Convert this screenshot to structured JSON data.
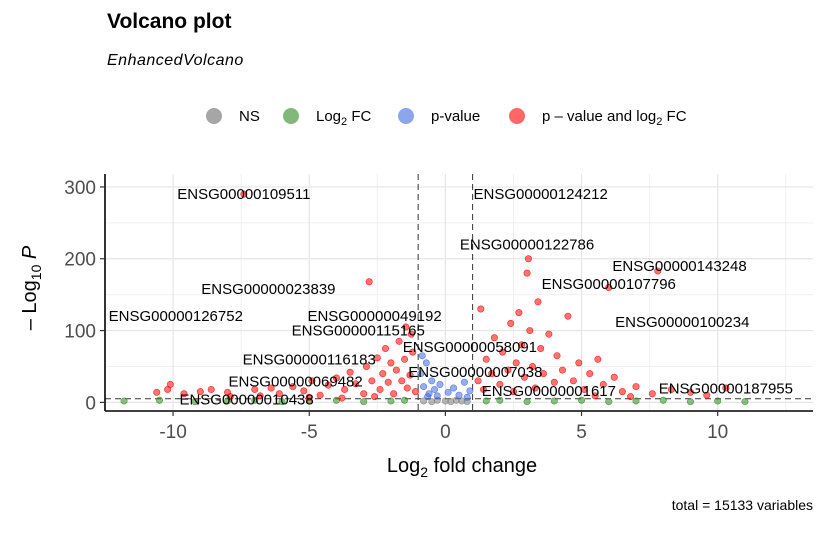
{
  "chart_data": {
    "type": "scatter",
    "title": "Volcano plot",
    "subtitle": "EnhancedVolcano",
    "caption": "total = 15133 variables",
    "xlabel": "Log2 fold change",
    "ylabel": "-Log10 P",
    "xlim": [
      -12.5,
      13.5
    ],
    "ylim": [
      -12,
      318
    ],
    "xticks": [
      -10,
      -5,
      0,
      5,
      10
    ],
    "yticks": [
      0,
      100,
      200,
      300
    ],
    "fc_cutoff": 1,
    "p_cutoff_log10": 5,
    "grid": true,
    "legend_position": "top",
    "legend": [
      {
        "key": "NS",
        "label": "NS",
        "color": "#808080"
      },
      {
        "key": "FC",
        "label": "Log2 FC",
        "color": "#2e8b22"
      },
      {
        "key": "P",
        "label": "p-value",
        "color": "#4169e1"
      },
      {
        "key": "FCP",
        "label": "p – value and log2 FC",
        "color": "#ff0000"
      }
    ],
    "points": [
      {
        "x": -10.2,
        "y": 18,
        "group": "FCP"
      },
      {
        "x": -10.1,
        "y": 25,
        "group": "FCP"
      },
      {
        "x": -10.6,
        "y": 14,
        "group": "FCP"
      },
      {
        "x": -9.6,
        "y": 12,
        "group": "FCP"
      },
      {
        "x": -9.0,
        "y": 15,
        "group": "FCP"
      },
      {
        "x": -8.6,
        "y": 18,
        "group": "FCP"
      },
      {
        "x": -8.0,
        "y": 14,
        "group": "FCP"
      },
      {
        "x": -7.9,
        "y": 8,
        "group": "FCP"
      },
      {
        "x": -7.4,
        "y": 290,
        "group": "FCP"
      },
      {
        "x": -7.0,
        "y": 18,
        "group": "FCP"
      },
      {
        "x": -6.4,
        "y": 20,
        "group": "FCP"
      },
      {
        "x": -6.1,
        "y": 12,
        "group": "FCP"
      },
      {
        "x": -5.6,
        "y": 22,
        "group": "FCP"
      },
      {
        "x": -5.2,
        "y": 16,
        "group": "FCP"
      },
      {
        "x": -4.9,
        "y": 30,
        "group": "FCP"
      },
      {
        "x": -4.6,
        "y": 10,
        "group": "FCP"
      },
      {
        "x": -4.3,
        "y": 24,
        "group": "FCP"
      },
      {
        "x": -4.0,
        "y": 34,
        "group": "FCP"
      },
      {
        "x": -3.7,
        "y": 18,
        "group": "FCP"
      },
      {
        "x": -3.5,
        "y": 42,
        "group": "FCP"
      },
      {
        "x": -3.3,
        "y": 26,
        "group": "FCP"
      },
      {
        "x": -3.0,
        "y": 12,
        "group": "FCP"
      },
      {
        "x": -2.9,
        "y": 50,
        "group": "FCP"
      },
      {
        "x": -2.8,
        "y": 168,
        "group": "FCP"
      },
      {
        "x": -2.7,
        "y": 30,
        "group": "FCP"
      },
      {
        "x": -2.5,
        "y": 62,
        "group": "FCP"
      },
      {
        "x": -2.4,
        "y": 18,
        "group": "FCP"
      },
      {
        "x": -2.3,
        "y": 40,
        "group": "FCP"
      },
      {
        "x": -2.2,
        "y": 75,
        "group": "FCP"
      },
      {
        "x": -2.1,
        "y": 28,
        "group": "FCP"
      },
      {
        "x": -2.0,
        "y": 55,
        "group": "FCP"
      },
      {
        "x": -1.9,
        "y": 12,
        "group": "FCP"
      },
      {
        "x": -1.8,
        "y": 45,
        "group": "FCP"
      },
      {
        "x": -1.7,
        "y": 85,
        "group": "FCP"
      },
      {
        "x": -1.6,
        "y": 30,
        "group": "FCP"
      },
      {
        "x": -1.5,
        "y": 60,
        "group": "FCP"
      },
      {
        "x": -1.4,
        "y": 20,
        "group": "FCP"
      },
      {
        "x": -1.3,
        "y": 38,
        "group": "FCP"
      },
      {
        "x": -1.2,
        "y": 70,
        "group": "FCP"
      },
      {
        "x": -1.1,
        "y": 15,
        "group": "FCP"
      },
      {
        "x": -2.6,
        "y": 8,
        "group": "FCP"
      },
      {
        "x": -3.8,
        "y": 6,
        "group": "FCP"
      },
      {
        "x": -5.0,
        "y": 7,
        "group": "FCP"
      },
      {
        "x": -6.8,
        "y": 9,
        "group": "FCP"
      },
      {
        "x": -1.25,
        "y": 95,
        "group": "FCP"
      },
      {
        "x": -1.45,
        "y": 105,
        "group": "FCP"
      },
      {
        "x": -0.9,
        "y": 40,
        "group": "P"
      },
      {
        "x": -0.8,
        "y": 22,
        "group": "P"
      },
      {
        "x": -0.7,
        "y": 55,
        "group": "P"
      },
      {
        "x": -0.6,
        "y": 12,
        "group": "P"
      },
      {
        "x": -0.5,
        "y": 30,
        "group": "P"
      },
      {
        "x": -0.4,
        "y": 18,
        "group": "P"
      },
      {
        "x": -0.3,
        "y": 9,
        "group": "P"
      },
      {
        "x": -0.2,
        "y": 25,
        "group": "P"
      },
      {
        "x": 0.1,
        "y": 14,
        "group": "P"
      },
      {
        "x": 0.3,
        "y": 20,
        "group": "P"
      },
      {
        "x": 0.5,
        "y": 10,
        "group": "P"
      },
      {
        "x": 0.7,
        "y": 28,
        "group": "P"
      },
      {
        "x": 0.9,
        "y": 16,
        "group": "P"
      },
      {
        "x": -0.85,
        "y": 65,
        "group": "P"
      },
      {
        "x": -0.65,
        "y": 8,
        "group": "P"
      },
      {
        "x": 0.8,
        "y": 7,
        "group": "P"
      },
      {
        "x": 1.2,
        "y": 30,
        "group": "FCP"
      },
      {
        "x": 1.4,
        "y": 18,
        "group": "FCP"
      },
      {
        "x": 1.5,
        "y": 60,
        "group": "FCP"
      },
      {
        "x": 1.7,
        "y": 40,
        "group": "FCP"
      },
      {
        "x": 1.8,
        "y": 90,
        "group": "FCP"
      },
      {
        "x": 2.0,
        "y": 25,
        "group": "FCP"
      },
      {
        "x": 2.1,
        "y": 70,
        "group": "FCP"
      },
      {
        "x": 2.3,
        "y": 45,
        "group": "FCP"
      },
      {
        "x": 2.4,
        "y": 110,
        "group": "FCP"
      },
      {
        "x": 2.5,
        "y": 15,
        "group": "FCP"
      },
      {
        "x": 2.6,
        "y": 55,
        "group": "FCP"
      },
      {
        "x": 2.8,
        "y": 80,
        "group": "FCP"
      },
      {
        "x": 2.9,
        "y": 35,
        "group": "FCP"
      },
      {
        "x": 3.0,
        "y": 180,
        "group": "FCP"
      },
      {
        "x": 3.05,
        "y": 200,
        "group": "FCP"
      },
      {
        "x": 3.1,
        "y": 100,
        "group": "FCP"
      },
      {
        "x": 3.2,
        "y": 50,
        "group": "FCP"
      },
      {
        "x": 3.3,
        "y": 20,
        "group": "FCP"
      },
      {
        "x": 3.5,
        "y": 75,
        "group": "FCP"
      },
      {
        "x": 3.6,
        "y": 40,
        "group": "FCP"
      },
      {
        "x": 3.8,
        "y": 95,
        "group": "FCP"
      },
      {
        "x": 4.0,
        "y": 28,
        "group": "FCP"
      },
      {
        "x": 4.1,
        "y": 65,
        "group": "FCP"
      },
      {
        "x": 4.3,
        "y": 45,
        "group": "FCP"
      },
      {
        "x": 4.5,
        "y": 120,
        "group": "FCP"
      },
      {
        "x": 4.7,
        "y": 30,
        "group": "FCP"
      },
      {
        "x": 4.9,
        "y": 55,
        "group": "FCP"
      },
      {
        "x": 5.1,
        "y": 18,
        "group": "FCP"
      },
      {
        "x": 5.3,
        "y": 40,
        "group": "FCP"
      },
      {
        "x": 5.6,
        "y": 60,
        "group": "FCP"
      },
      {
        "x": 5.8,
        "y": 25,
        "group": "FCP"
      },
      {
        "x": 6.0,
        "y": 160,
        "group": "FCP"
      },
      {
        "x": 6.2,
        "y": 35,
        "group": "FCP"
      },
      {
        "x": 6.5,
        "y": 15,
        "group": "FCP"
      },
      {
        "x": 7.0,
        "y": 22,
        "group": "FCP"
      },
      {
        "x": 7.6,
        "y": 12,
        "group": "FCP"
      },
      {
        "x": 7.8,
        "y": 183,
        "group": "FCP"
      },
      {
        "x": 8.3,
        "y": 18,
        "group": "FCP"
      },
      {
        "x": 9.0,
        "y": 14,
        "group": "FCP"
      },
      {
        "x": 9.6,
        "y": 10,
        "group": "FCP"
      },
      {
        "x": 10.3,
        "y": 20,
        "group": "FCP"
      },
      {
        "x": 6.8,
        "y": 8,
        "group": "FCP"
      },
      {
        "x": 5.5,
        "y": 9,
        "group": "FCP"
      },
      {
        "x": 1.3,
        "y": 130,
        "group": "FCP"
      },
      {
        "x": 2.7,
        "y": 125,
        "group": "FCP"
      },
      {
        "x": 3.4,
        "y": 140,
        "group": "FCP"
      },
      {
        "x": -11.8,
        "y": 2,
        "group": "FC"
      },
      {
        "x": -10.5,
        "y": 3,
        "group": "FC"
      },
      {
        "x": -9.2,
        "y": 1,
        "group": "FC"
      },
      {
        "x": -8.0,
        "y": 2,
        "group": "FC"
      },
      {
        "x": -7.0,
        "y": 3,
        "group": "FC"
      },
      {
        "x": -6.0,
        "y": 1,
        "group": "FC"
      },
      {
        "x": -5.0,
        "y": 2,
        "group": "FC"
      },
      {
        "x": -4.0,
        "y": 3,
        "group": "FC"
      },
      {
        "x": -3.0,
        "y": 1,
        "group": "FC"
      },
      {
        "x": -2.0,
        "y": 2,
        "group": "FC"
      },
      {
        "x": -1.5,
        "y": 3,
        "group": "FC"
      },
      {
        "x": 1.5,
        "y": 2,
        "group": "FC"
      },
      {
        "x": 2.0,
        "y": 3,
        "group": "FC"
      },
      {
        "x": 3.0,
        "y": 1,
        "group": "FC"
      },
      {
        "x": 4.0,
        "y": 2,
        "group": "FC"
      },
      {
        "x": 5.0,
        "y": 3,
        "group": "FC"
      },
      {
        "x": 6.0,
        "y": 1,
        "group": "FC"
      },
      {
        "x": 7.0,
        "y": 2,
        "group": "FC"
      },
      {
        "x": 8.0,
        "y": 3,
        "group": "FC"
      },
      {
        "x": 9.0,
        "y": 1,
        "group": "FC"
      },
      {
        "x": 10.0,
        "y": 2,
        "group": "FC"
      },
      {
        "x": 11.0,
        "y": 1,
        "group": "FC"
      },
      {
        "x": -0.8,
        "y": 2,
        "group": "NS"
      },
      {
        "x": -0.5,
        "y": 1,
        "group": "NS"
      },
      {
        "x": -0.3,
        "y": 3,
        "group": "NS"
      },
      {
        "x": 0.0,
        "y": 2,
        "group": "NS"
      },
      {
        "x": 0.2,
        "y": 1,
        "group": "NS"
      },
      {
        "x": 0.4,
        "y": 3,
        "group": "NS"
      },
      {
        "x": 0.6,
        "y": 2,
        "group": "NS"
      },
      {
        "x": 0.8,
        "y": 1,
        "group": "NS"
      }
    ],
    "labels": [
      {
        "text": "ENSG00000109511",
        "x": -7.4,
        "y": 290
      },
      {
        "text": "ENSG00000124212",
        "x": 3.5,
        "y": 290
      },
      {
        "text": "ENSG00000122786",
        "x": 3.0,
        "y": 220
      },
      {
        "text": "ENSG00000143248",
        "x": 8.6,
        "y": 190
      },
      {
        "text": "ENSG00000107796",
        "x": 6.0,
        "y": 165
      },
      {
        "text": "ENSG00000023839",
        "x": -6.5,
        "y": 158
      },
      {
        "text": "ENSG00000126752",
        "x": -9.9,
        "y": 120
      },
      {
        "text": "ENSG00000049192",
        "x": -2.6,
        "y": 120
      },
      {
        "text": "ENSG00000100234",
        "x": 8.7,
        "y": 112
      },
      {
        "text": "ENSG00000115165",
        "x": -3.2,
        "y": 100
      },
      {
        "text": "ENSG00000058091",
        "x": 0.9,
        "y": 77
      },
      {
        "text": "ENSG00000116183",
        "x": -5.0,
        "y": 60
      },
      {
        "text": "ENSG00000007038",
        "x": 1.1,
        "y": 42
      },
      {
        "text": "ENSG00000069482",
        "x": -5.5,
        "y": 29
      },
      {
        "text": "ENSG00000001617",
        "x": 3.8,
        "y": 16
      },
      {
        "text": "ENSG00000187955",
        "x": 10.3,
        "y": 19
      },
      {
        "text": "ENSG00000010438",
        "x": -7.3,
        "y": 4
      }
    ]
  }
}
